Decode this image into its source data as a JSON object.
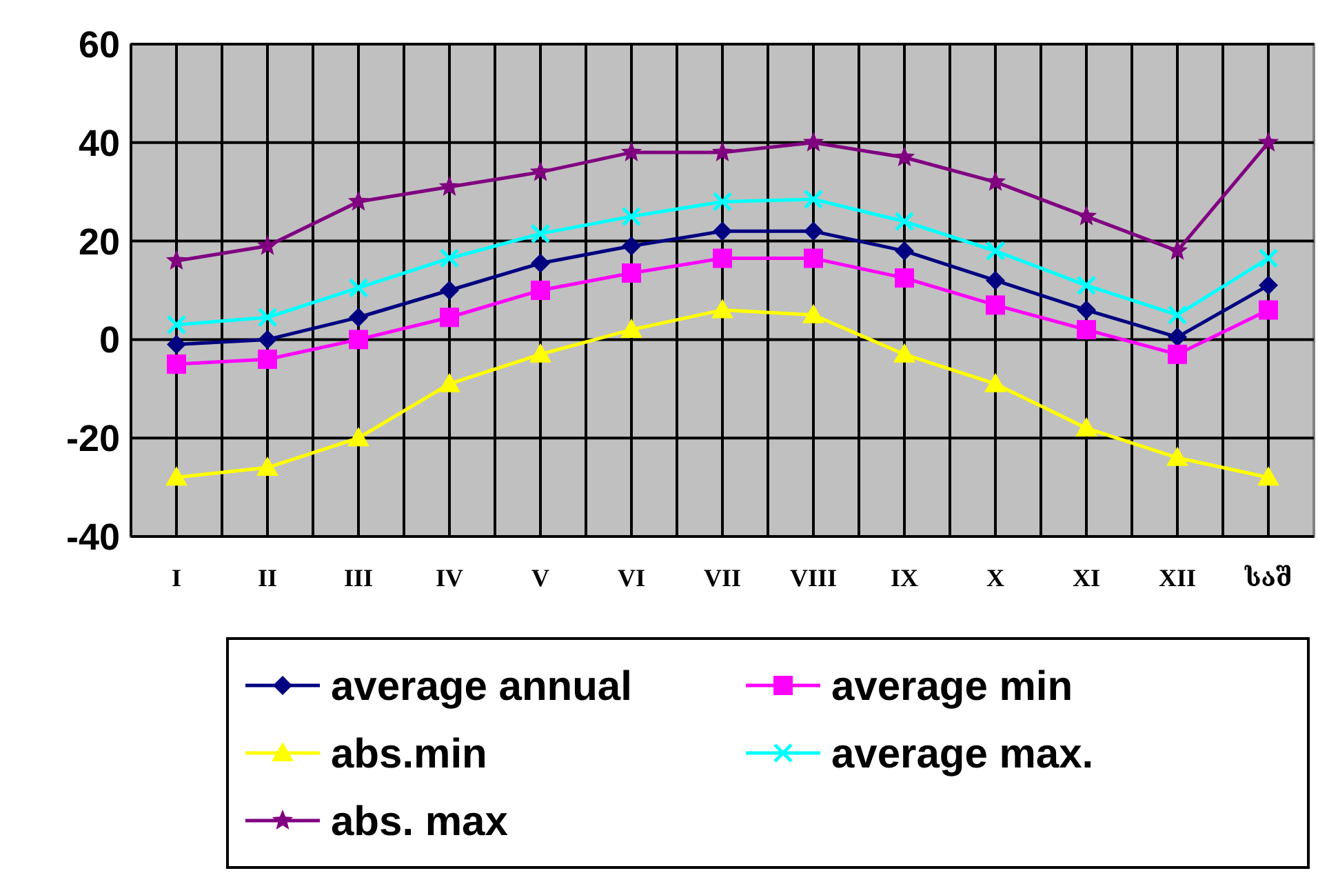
{
  "chart_data": {
    "type": "line",
    "categories": [
      "I",
      "II",
      "III",
      "IV",
      "V",
      "VI",
      "VII",
      "VIII",
      "IX",
      "X",
      "XI",
      "XII",
      "საშ"
    ],
    "ylim": [
      -40,
      60
    ],
    "yticks": [
      -40,
      -20,
      0,
      20,
      40,
      60
    ],
    "grid": true,
    "legend": "bottom",
    "series": [
      {
        "name": "average annual",
        "color": "#000080",
        "marker": "diamond",
        "values": [
          -1,
          0,
          4.5,
          10,
          15.5,
          19,
          22,
          22,
          18,
          12,
          6,
          0.5,
          11
        ]
      },
      {
        "name": "average min",
        "color": "#ff00ff",
        "marker": "square",
        "values": [
          -5,
          -4,
          0,
          4.5,
          10,
          13.5,
          16.5,
          16.5,
          12.5,
          7,
          2,
          -3,
          6
        ]
      },
      {
        "name": "abs.min",
        "color": "#ffff00",
        "marker": "triangle",
        "values": [
          -28,
          -26,
          -20,
          -9,
          -3,
          2,
          6,
          5,
          -3,
          -9,
          -18,
          -24,
          -28
        ]
      },
      {
        "name": "average max.",
        "color": "#00ffff",
        "marker": "cross",
        "values": [
          3,
          4.5,
          10.5,
          16.5,
          21.5,
          25,
          28,
          28.5,
          24,
          18,
          11,
          5,
          16.5
        ]
      },
      {
        "name": "abs. max",
        "color": "#800080",
        "marker": "star",
        "values": [
          16,
          19,
          28,
          31,
          34,
          38,
          38,
          40,
          37,
          32,
          25,
          18,
          40
        ]
      }
    ]
  }
}
